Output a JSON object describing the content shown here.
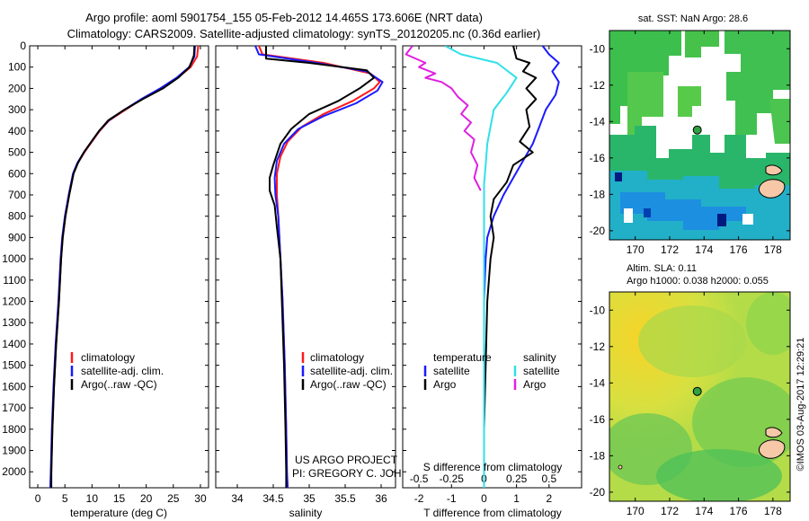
{
  "title": {
    "line1": "Argo profile: aoml 5901754_155 05-Feb-2012 14.465S 173.606E (NRT data)",
    "line2": "Climatology: CARS2009. Satellite-adjusted climatology: synTS_20120205.nc (0.36d earlier)"
  },
  "colors": {
    "climatology": "#ff1a1a",
    "satellite": "#1a1aff",
    "argo": "#000000",
    "salinity_satellite": "#30e0e8",
    "salinity_argo": "#e020e0"
  },
  "chart_data": [
    {
      "id": "temperature",
      "type": "line",
      "xlabel": "temperature (deg C)",
      "xlim": [
        -1.5,
        31.5
      ],
      "xticks": [
        0,
        5,
        10,
        15,
        20,
        25,
        30
      ],
      "ylim": [
        0,
        2075
      ],
      "legend": [
        "climatology",
        "satellite-adj. clim.",
        "Argo(..raw -QC)"
      ],
      "series": [
        {
          "name": "climatology",
          "color": "#ff1a1a",
          "points": [
            [
              29.6,
              0
            ],
            [
              29.4,
              50
            ],
            [
              28.2,
              100
            ],
            [
              25.8,
              150
            ],
            [
              22.8,
              200
            ],
            [
              19.2,
              250
            ],
            [
              16.2,
              300
            ],
            [
              13.2,
              350
            ],
            [
              11.4,
              400
            ],
            [
              10.0,
              450
            ],
            [
              8.6,
              500
            ],
            [
              7.4,
              550
            ],
            [
              6.6,
              600
            ],
            [
              5.8,
              700
            ],
            [
              5.1,
              800
            ],
            [
              4.6,
              900
            ],
            [
              4.3,
              1000
            ],
            [
              3.9,
              1200
            ],
            [
              3.4,
              1400
            ],
            [
              3.0,
              1600
            ],
            [
              2.7,
              1800
            ],
            [
              2.5,
              2000
            ],
            [
              2.4,
              2075
            ]
          ]
        },
        {
          "name": "satellite-adj. clim.",
          "color": "#1a1aff",
          "points": [
            [
              29.0,
              0
            ],
            [
              28.9,
              50
            ],
            [
              27.9,
              100
            ],
            [
              25.6,
              150
            ],
            [
              22.6,
              200
            ],
            [
              19.1,
              250
            ],
            [
              16.0,
              300
            ],
            [
              13.1,
              350
            ],
            [
              11.3,
              400
            ],
            [
              9.9,
              450
            ],
            [
              8.5,
              500
            ],
            [
              7.3,
              550
            ],
            [
              6.5,
              600
            ],
            [
              5.7,
              700
            ],
            [
              5.0,
              800
            ],
            [
              4.5,
              900
            ],
            [
              4.2,
              1000
            ],
            [
              3.8,
              1200
            ],
            [
              3.3,
              1400
            ],
            [
              2.9,
              1600
            ],
            [
              2.6,
              1800
            ],
            [
              2.4,
              2000
            ],
            [
              2.3,
              2075
            ]
          ]
        },
        {
          "name": "Argo(..raw -QC)",
          "color": "#000000",
          "points": [
            [
              28.9,
              0
            ],
            [
              28.8,
              45
            ],
            [
              28.0,
              100
            ],
            [
              25.9,
              150
            ],
            [
              23.1,
              200
            ],
            [
              19.4,
              250
            ],
            [
              16.0,
              300
            ],
            [
              13.0,
              350
            ],
            [
              11.3,
              400
            ],
            [
              9.9,
              450
            ],
            [
              8.5,
              500
            ],
            [
              7.4,
              550
            ],
            [
              6.6,
              600
            ],
            [
              5.8,
              700
            ],
            [
              5.1,
              800
            ],
            [
              4.6,
              900
            ],
            [
              4.3,
              1000
            ],
            [
              3.9,
              1200
            ],
            [
              3.4,
              1400
            ],
            [
              3.0,
              1600
            ],
            [
              2.7,
              1800
            ],
            [
              2.5,
              2000
            ],
            [
              2.5,
              2075
            ]
          ]
        }
      ]
    },
    {
      "id": "salinity",
      "type": "line",
      "xlabel": "salinity",
      "xlim": [
        33.7,
        36.2
      ],
      "xticks": [
        34,
        34.5,
        35,
        35.5,
        36
      ],
      "xticklabels": [
        "34",
        "34.5",
        "35",
        "35.5",
        "36"
      ],
      "ylim": [
        0,
        2075
      ],
      "legend": [
        "climatology",
        "satellite-adj. clim.",
        "Argo(..raw -QC)"
      ],
      "series": [
        {
          "name": "climatology",
          "color": "#ff1a1a",
          "points": [
            [
              34.3,
              0
            ],
            [
              34.35,
              40
            ],
            [
              35.2,
              80
            ],
            [
              35.85,
              130
            ],
            [
              35.98,
              170
            ],
            [
              35.9,
              200
            ],
            [
              35.6,
              260
            ],
            [
              35.2,
              320
            ],
            [
              34.9,
              380
            ],
            [
              34.7,
              450
            ],
            [
              34.6,
              520
            ],
            [
              34.55,
              600
            ],
            [
              34.55,
              700
            ],
            [
              34.57,
              800
            ],
            [
              34.6,
              1000
            ],
            [
              34.63,
              1200
            ],
            [
              34.66,
              1500
            ],
            [
              34.68,
              1800
            ],
            [
              34.69,
              2000
            ],
            [
              34.7,
              2075
            ]
          ]
        },
        {
          "name": "satellite-adj. clim.",
          "color": "#1a1aff",
          "points": [
            [
              34.25,
              0
            ],
            [
              34.3,
              40
            ],
            [
              35.1,
              80
            ],
            [
              35.8,
              120
            ],
            [
              36.02,
              170
            ],
            [
              35.95,
              210
            ],
            [
              35.65,
              270
            ],
            [
              35.2,
              330
            ],
            [
              34.85,
              390
            ],
            [
              34.65,
              460
            ],
            [
              34.55,
              540
            ],
            [
              34.52,
              620
            ],
            [
              34.53,
              700
            ],
            [
              34.57,
              800
            ],
            [
              34.6,
              1000
            ],
            [
              34.63,
              1200
            ],
            [
              34.66,
              1500
            ],
            [
              34.68,
              1800
            ],
            [
              34.69,
              2000
            ],
            [
              34.7,
              2075
            ]
          ]
        },
        {
          "name": "Argo(..raw -QC)",
          "color": "#000000",
          "points": [
            [
              34.4,
              0
            ],
            [
              34.4,
              60
            ],
            [
              35.0,
              80
            ],
            [
              35.8,
              115
            ],
            [
              35.9,
              150
            ],
            [
              35.7,
              200
            ],
            [
              35.4,
              260
            ],
            [
              35.0,
              320
            ],
            [
              34.75,
              390
            ],
            [
              34.6,
              460
            ],
            [
              34.5,
              560
            ],
            [
              34.45,
              620
            ],
            [
              34.45,
              680
            ],
            [
              34.52,
              750
            ],
            [
              34.55,
              850
            ],
            [
              34.6,
              1000
            ],
            [
              34.62,
              1200
            ],
            [
              34.65,
              1500
            ],
            [
              34.67,
              1800
            ],
            [
              34.68,
              2000
            ],
            [
              34.68,
              2075
            ]
          ]
        }
      ]
    },
    {
      "id": "difference",
      "type": "line",
      "xlabel": "T difference from climatology",
      "xlabel_top": "S difference from climatology",
      "xlim": [
        -2.5,
        3.0
      ],
      "xticks": [
        -2,
        -1,
        0,
        1,
        2
      ],
      "xticklabels": [
        "-2",
        "-1",
        "0",
        "1",
        "2"
      ],
      "sticks": [
        -0.5,
        -0.25,
        0,
        0.25,
        0.5
      ],
      "sticklabels": [
        "-0.5",
        "-0.25",
        "0",
        "0.25",
        "0.5"
      ],
      "ylim": [
        0,
        2075
      ],
      "legend_temperature_title": "temperature",
      "legend_salinity_title": "salinity",
      "legend": [
        "satellite",
        "Argo",
        "satellite",
        "Argo"
      ],
      "series": [
        {
          "name": "T satellite",
          "color": "#1a1aff",
          "points": [
            [
              1.8,
              0
            ],
            [
              2.0,
              40
            ],
            [
              2.3,
              80
            ],
            [
              2.1,
              120
            ],
            [
              2.3,
              170
            ],
            [
              2.2,
              230
            ],
            [
              1.9,
              300
            ],
            [
              1.7,
              380
            ],
            [
              1.5,
              460
            ],
            [
              1.2,
              540
            ],
            [
              0.9,
              620
            ],
            [
              0.6,
              700
            ],
            [
              0.3,
              800
            ],
            [
              0.1,
              900
            ],
            [
              0.05,
              1000
            ],
            [
              0.0,
              1200
            ],
            [
              0.0,
              1500
            ],
            [
              0.0,
              1800
            ],
            [
              0.0,
              2075
            ]
          ]
        },
        {
          "name": "T Argo",
          "color": "#000000",
          "points": [
            [
              0.9,
              0
            ],
            [
              1.0,
              60
            ],
            [
              1.4,
              80
            ],
            [
              1.2,
              120
            ],
            [
              1.6,
              150
            ],
            [
              1.3,
              200
            ],
            [
              1.6,
              250
            ],
            [
              1.3,
              300
            ],
            [
              1.4,
              380
            ],
            [
              1.1,
              450
            ],
            [
              1.5,
              500
            ],
            [
              0.9,
              560
            ],
            [
              0.7,
              640
            ],
            [
              0.3,
              720
            ],
            [
              0.2,
              800
            ],
            [
              0.3,
              900
            ],
            [
              0.2,
              1000
            ],
            [
              0.1,
              1200
            ],
            [
              0.05,
              1500
            ],
            [
              0.0,
              1800
            ],
            [
              0.0,
              2075
            ]
          ]
        },
        {
          "name": "S satellite",
          "color": "#30e0e8",
          "points": [
            [
              -1.2,
              0
            ],
            [
              -0.7,
              40
            ],
            [
              0.4,
              80
            ],
            [
              1.0,
              150
            ],
            [
              0.7,
              220
            ],
            [
              0.3,
              300
            ],
            [
              0.2,
              380
            ],
            [
              0.1,
              460
            ],
            [
              0.05,
              560
            ],
            [
              0.0,
              650
            ],
            [
              0.0,
              800
            ],
            [
              0.0,
              1000
            ],
            [
              0.0,
              1500
            ],
            [
              0.0,
              2075
            ]
          ]
        },
        {
          "name": "S Argo",
          "color": "#e020e0",
          "points": [
            [
              -2.2,
              0
            ],
            [
              -2.4,
              40
            ],
            [
              -1.8,
              80
            ],
            [
              -2.0,
              100
            ],
            [
              -1.5,
              130
            ],
            [
              -1.8,
              150
            ],
            [
              -1.3,
              170
            ],
            [
              -1.0,
              200
            ],
            [
              -0.8,
              240
            ],
            [
              -0.5,
              280
            ],
            [
              -0.7,
              320
            ],
            [
              -0.4,
              360
            ],
            [
              -0.6,
              400
            ],
            [
              -0.3,
              440
            ],
            [
              -0.4,
              500
            ],
            [
              -0.2,
              560
            ],
            [
              -0.3,
              620
            ],
            [
              -0.1,
              680
            ]
          ]
        }
      ]
    }
  ],
  "depth_axis": {
    "ticks": [
      0,
      100,
      200,
      300,
      400,
      500,
      600,
      700,
      800,
      900,
      1000,
      1100,
      1200,
      1300,
      1400,
      1500,
      1600,
      1700,
      1800,
      1900,
      2000
    ],
    "tick_labels": [
      "0",
      "100",
      "200",
      "300",
      "400",
      "500",
      "600",
      "700",
      "800",
      "900",
      "1000",
      "1100",
      "1200",
      "1300",
      "1400",
      "1500",
      "1600",
      "1700",
      "1800",
      "1900",
      "2000"
    ]
  },
  "credit": {
    "line1": "US ARGO PROJECT",
    "line2": "PI: GREGORY C. JOHNSON"
  },
  "sst_map": {
    "title": "sat. SST: NaN Argo: 28.6",
    "xticks": [
      "170",
      "172",
      "174",
      "176",
      "178"
    ],
    "yticks": [
      "-10",
      "-12",
      "-14",
      "-16",
      "-18",
      "-20"
    ],
    "lon_range": [
      168.5,
      179
    ],
    "lat_range": [
      -20.5,
      -9
    ]
  },
  "sla_map": {
    "title1": "Altim. SLA: 0.11",
    "title2": "Argo h1000: 0.038 h2000: 0.055",
    "xticks": [
      "170",
      "172",
      "174",
      "176",
      "178"
    ],
    "yticks": [
      "-10",
      "-12",
      "-14",
      "-16",
      "-18",
      "-20"
    ],
    "lon_range": [
      168.5,
      179
    ],
    "lat_range": [
      -20.5,
      -9
    ]
  },
  "float_position": {
    "lon": 173.606,
    "lat": -14.465
  },
  "timestamp": "©IMOS 03-Aug-2017 12:29:21"
}
